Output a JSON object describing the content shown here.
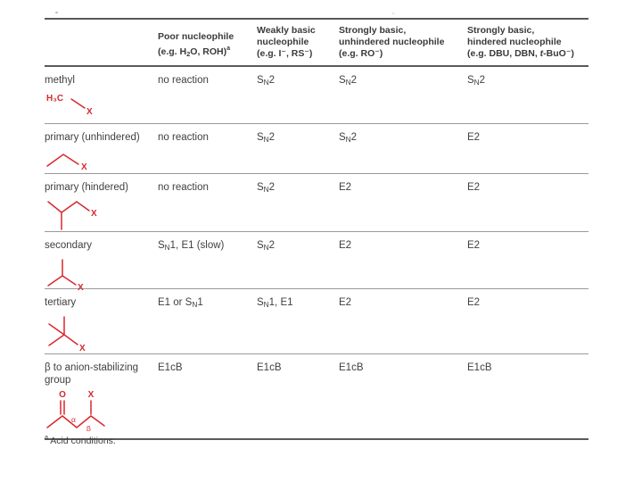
{
  "colors": {
    "structure_red": "#d7282f",
    "text": "#3f3f3f",
    "rule_dark": "#5a5a5a",
    "rule_light": "#9a9a9a"
  },
  "table": {
    "headers": [
      {
        "lines": [
          "Poor nucleophile",
          "(e.g. H{2}O, ROH)^(a)"
        ]
      },
      {
        "lines": [
          "Weakly basic",
          "nucleophile",
          "(e.g. I⁻, RS⁻)"
        ]
      },
      {
        "lines": [
          "Strongly basic,",
          "unhindered nucleophile",
          "(e.g. RO⁻)"
        ]
      },
      {
        "lines": [
          "Strongly basic,",
          "hindered nucleophile",
          "(e.g. DBU, DBN, *t*-BuO⁻)"
        ]
      }
    ],
    "rows": [
      {
        "label": "methyl",
        "cells": [
          "no reaction",
          "S{N}2",
          "S{N}2",
          "S{N}2"
        ]
      },
      {
        "label": "primary (unhindered)",
        "cells": [
          "no reaction",
          "S{N}2",
          "S{N}2",
          "E2"
        ]
      },
      {
        "label": "primary (hindered)",
        "cells": [
          "no reaction",
          "S{N}2",
          "E2",
          "E2"
        ]
      },
      {
        "label": "secondary",
        "cells": [
          "S{N}1, E1 (slow)",
          "S{N}2",
          "E2",
          "E2"
        ]
      },
      {
        "label": "tertiary",
        "cells": [
          "E1 or S{N}1",
          "S{N}1, E1",
          "E2",
          "E2"
        ]
      },
      {
        "label": "β to anion-stabilizing group",
        "cells": [
          "E1cB",
          "E1cB",
          "E1cB",
          "E1cB"
        ]
      }
    ],
    "footnote": "^(a) Acid conditions."
  },
  "structures": {
    "methyl": {
      "h3c": "H₃C",
      "x": "X"
    },
    "primary_unhindered": {
      "x": "X"
    },
    "primary_hindered": {
      "x": "X"
    },
    "secondary": {
      "x": "X"
    },
    "tertiary": {
      "x": "X"
    },
    "beta": {
      "o": "O",
      "x": "X",
      "alpha": "α",
      "beta": "β"
    }
  }
}
